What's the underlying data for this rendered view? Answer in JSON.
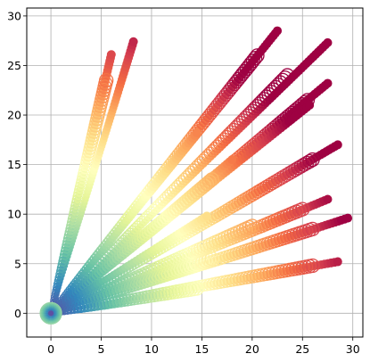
{
  "chart_data": {
    "type": "scatter",
    "title": "",
    "xlabel": "",
    "ylabel": "",
    "xlim": [
      -2.4,
      31.0
    ],
    "ylim": [
      -2.4,
      30.8
    ],
    "xticks": [
      0,
      5,
      10,
      15,
      20,
      25,
      30
    ],
    "yticks": [
      0,
      5,
      10,
      15,
      20,
      25,
      30
    ],
    "xtick_labels": [
      "0",
      "5",
      "10",
      "15",
      "20",
      "25",
      "30"
    ],
    "ytick_labels": [
      "0",
      "5",
      "10",
      "15",
      "20",
      "25",
      "30"
    ],
    "grid": true,
    "colormap": "Spectral_r",
    "colormap_stops": [
      "#5e4fa2",
      "#3288bd",
      "#66c2a5",
      "#abdda4",
      "#e6f598",
      "#ffffbf",
      "#fee08b",
      "#fdae61",
      "#f46d43",
      "#d53e4f",
      "#9e0142"
    ],
    "marker_style": "filled markers with larger hollow rings along each ray; colour and size grow with distance from the origin",
    "rays": [
      {
        "end": [
          6.0,
          26.1
        ],
        "filled": true,
        "ring": false
      },
      {
        "end": [
          8.2,
          27.4
        ],
        "filled": true,
        "ring": false
      },
      {
        "end": [
          5.5,
          23.5
        ],
        "filled": false,
        "ring": true
      },
      {
        "end": [
          22.5,
          28.5
        ],
        "filled": true,
        "ring": false
      },
      {
        "end": [
          20.5,
          26.0
        ],
        "filled": false,
        "ring": true
      },
      {
        "end": [
          27.5,
          27.3
        ],
        "filled": true,
        "ring": false
      },
      {
        "end": [
          23.5,
          24.0
        ],
        "filled": false,
        "ring": true
      },
      {
        "end": [
          27.5,
          23.2
        ],
        "filled": true,
        "ring": false
      },
      {
        "end": [
          25.5,
          21.5
        ],
        "filled": false,
        "ring": true
      },
      {
        "end": [
          25.7,
          21.0
        ],
        "filled": true,
        "ring": false
      },
      {
        "end": [
          28.5,
          17.0
        ],
        "filled": true,
        "ring": false
      },
      {
        "end": [
          26.0,
          15.5
        ],
        "filled": false,
        "ring": true
      },
      {
        "end": [
          14.5,
          18.2
        ],
        "filled": true,
        "ring": false
      },
      {
        "end": [
          18.0,
          15.5
        ],
        "filled": true,
        "ring": false
      },
      {
        "end": [
          16.0,
          13.5
        ],
        "filled": false,
        "ring": true
      },
      {
        "end": [
          27.5,
          11.5
        ],
        "filled": true,
        "ring": false
      },
      {
        "end": [
          25.0,
          10.5
        ],
        "filled": false,
        "ring": true
      },
      {
        "end": [
          29.5,
          9.6
        ],
        "filled": true,
        "ring": false
      },
      {
        "end": [
          26.0,
          8.5
        ],
        "filled": false,
        "ring": true
      },
      {
        "end": [
          15.5,
          9.8
        ],
        "filled": true,
        "ring": false
      },
      {
        "end": [
          20.0,
          8.8
        ],
        "filled": false,
        "ring": true
      },
      {
        "end": [
          28.5,
          5.2
        ],
        "filled": true,
        "ring": false
      },
      {
        "end": [
          26.0,
          4.8
        ],
        "filled": false,
        "ring": true
      },
      {
        "end": [
          16.0,
          5.5
        ],
        "filled": false,
        "ring": true
      },
      {
        "end": [
          14.5,
          2.5
        ],
        "filled": false,
        "ring": true
      }
    ]
  }
}
